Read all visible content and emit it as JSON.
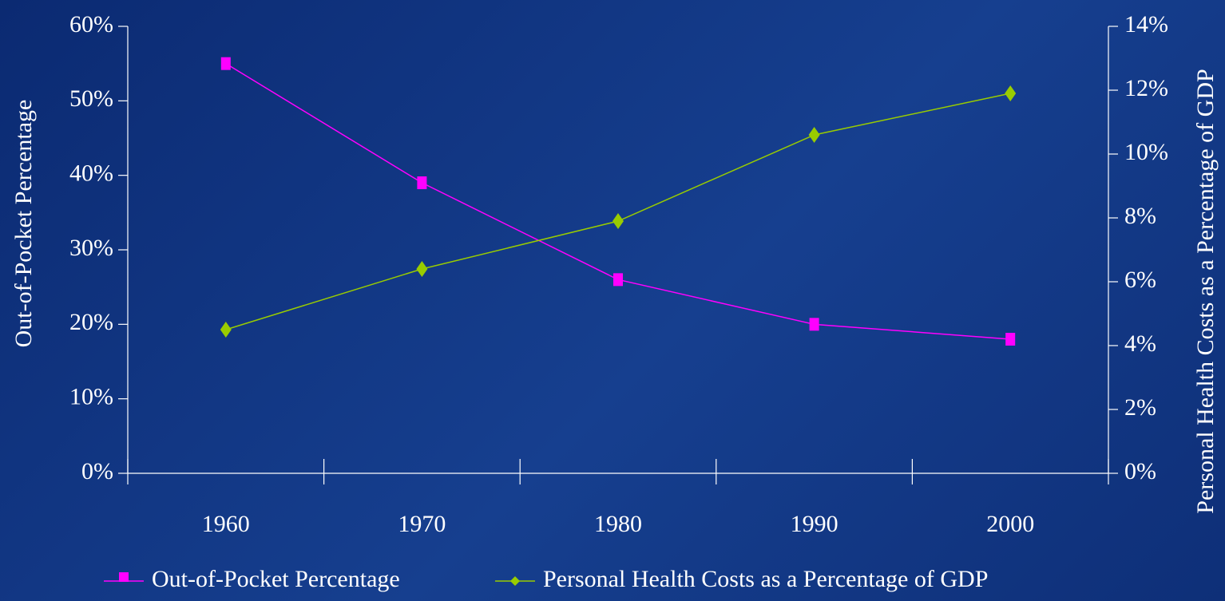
{
  "chart_data": {
    "type": "line",
    "categories": [
      "1960",
      "1970",
      "1980",
      "1990",
      "2000"
    ],
    "series": [
      {
        "name": "Out-of-Pocket Percentage",
        "color": "#ff00ff",
        "marker": "square",
        "values": [
          55,
          39,
          26,
          20,
          18
        ]
      },
      {
        "name": "Personal Health Costs as a Percentage of GDP",
        "color": "#99cc00",
        "marker": "diamond",
        "axis": "y2",
        "values": [
          4.5,
          6.4,
          7.9,
          10.6,
          11.9
        ]
      }
    ],
    "y_label": "Out-of-Pocket Percentage",
    "y2_label": "Personal Health Costs as a Percentage of GDP",
    "ylim": [
      0,
      60
    ],
    "yticks": [
      {
        "value": 0,
        "label": "0%"
      },
      {
        "value": 10,
        "label": "10%"
      },
      {
        "value": 20,
        "label": "20%"
      },
      {
        "value": 30,
        "label": "30%"
      },
      {
        "value": 40,
        "label": "40%"
      },
      {
        "value": 50,
        "label": "50%"
      },
      {
        "value": 60,
        "label": "60%"
      }
    ],
    "y2lim": [
      0,
      14
    ],
    "y2ticks": [
      {
        "value": 0,
        "label": "0%"
      },
      {
        "value": 2,
        "label": "2%"
      },
      {
        "value": 4,
        "label": "4%"
      },
      {
        "value": 6,
        "label": "6%"
      },
      {
        "value": 8,
        "label": "8%"
      },
      {
        "value": 10,
        "label": "10%"
      },
      {
        "value": 12,
        "label": "12%"
      },
      {
        "value": 14,
        "label": "14%"
      }
    ],
    "legend": "bottom"
  }
}
